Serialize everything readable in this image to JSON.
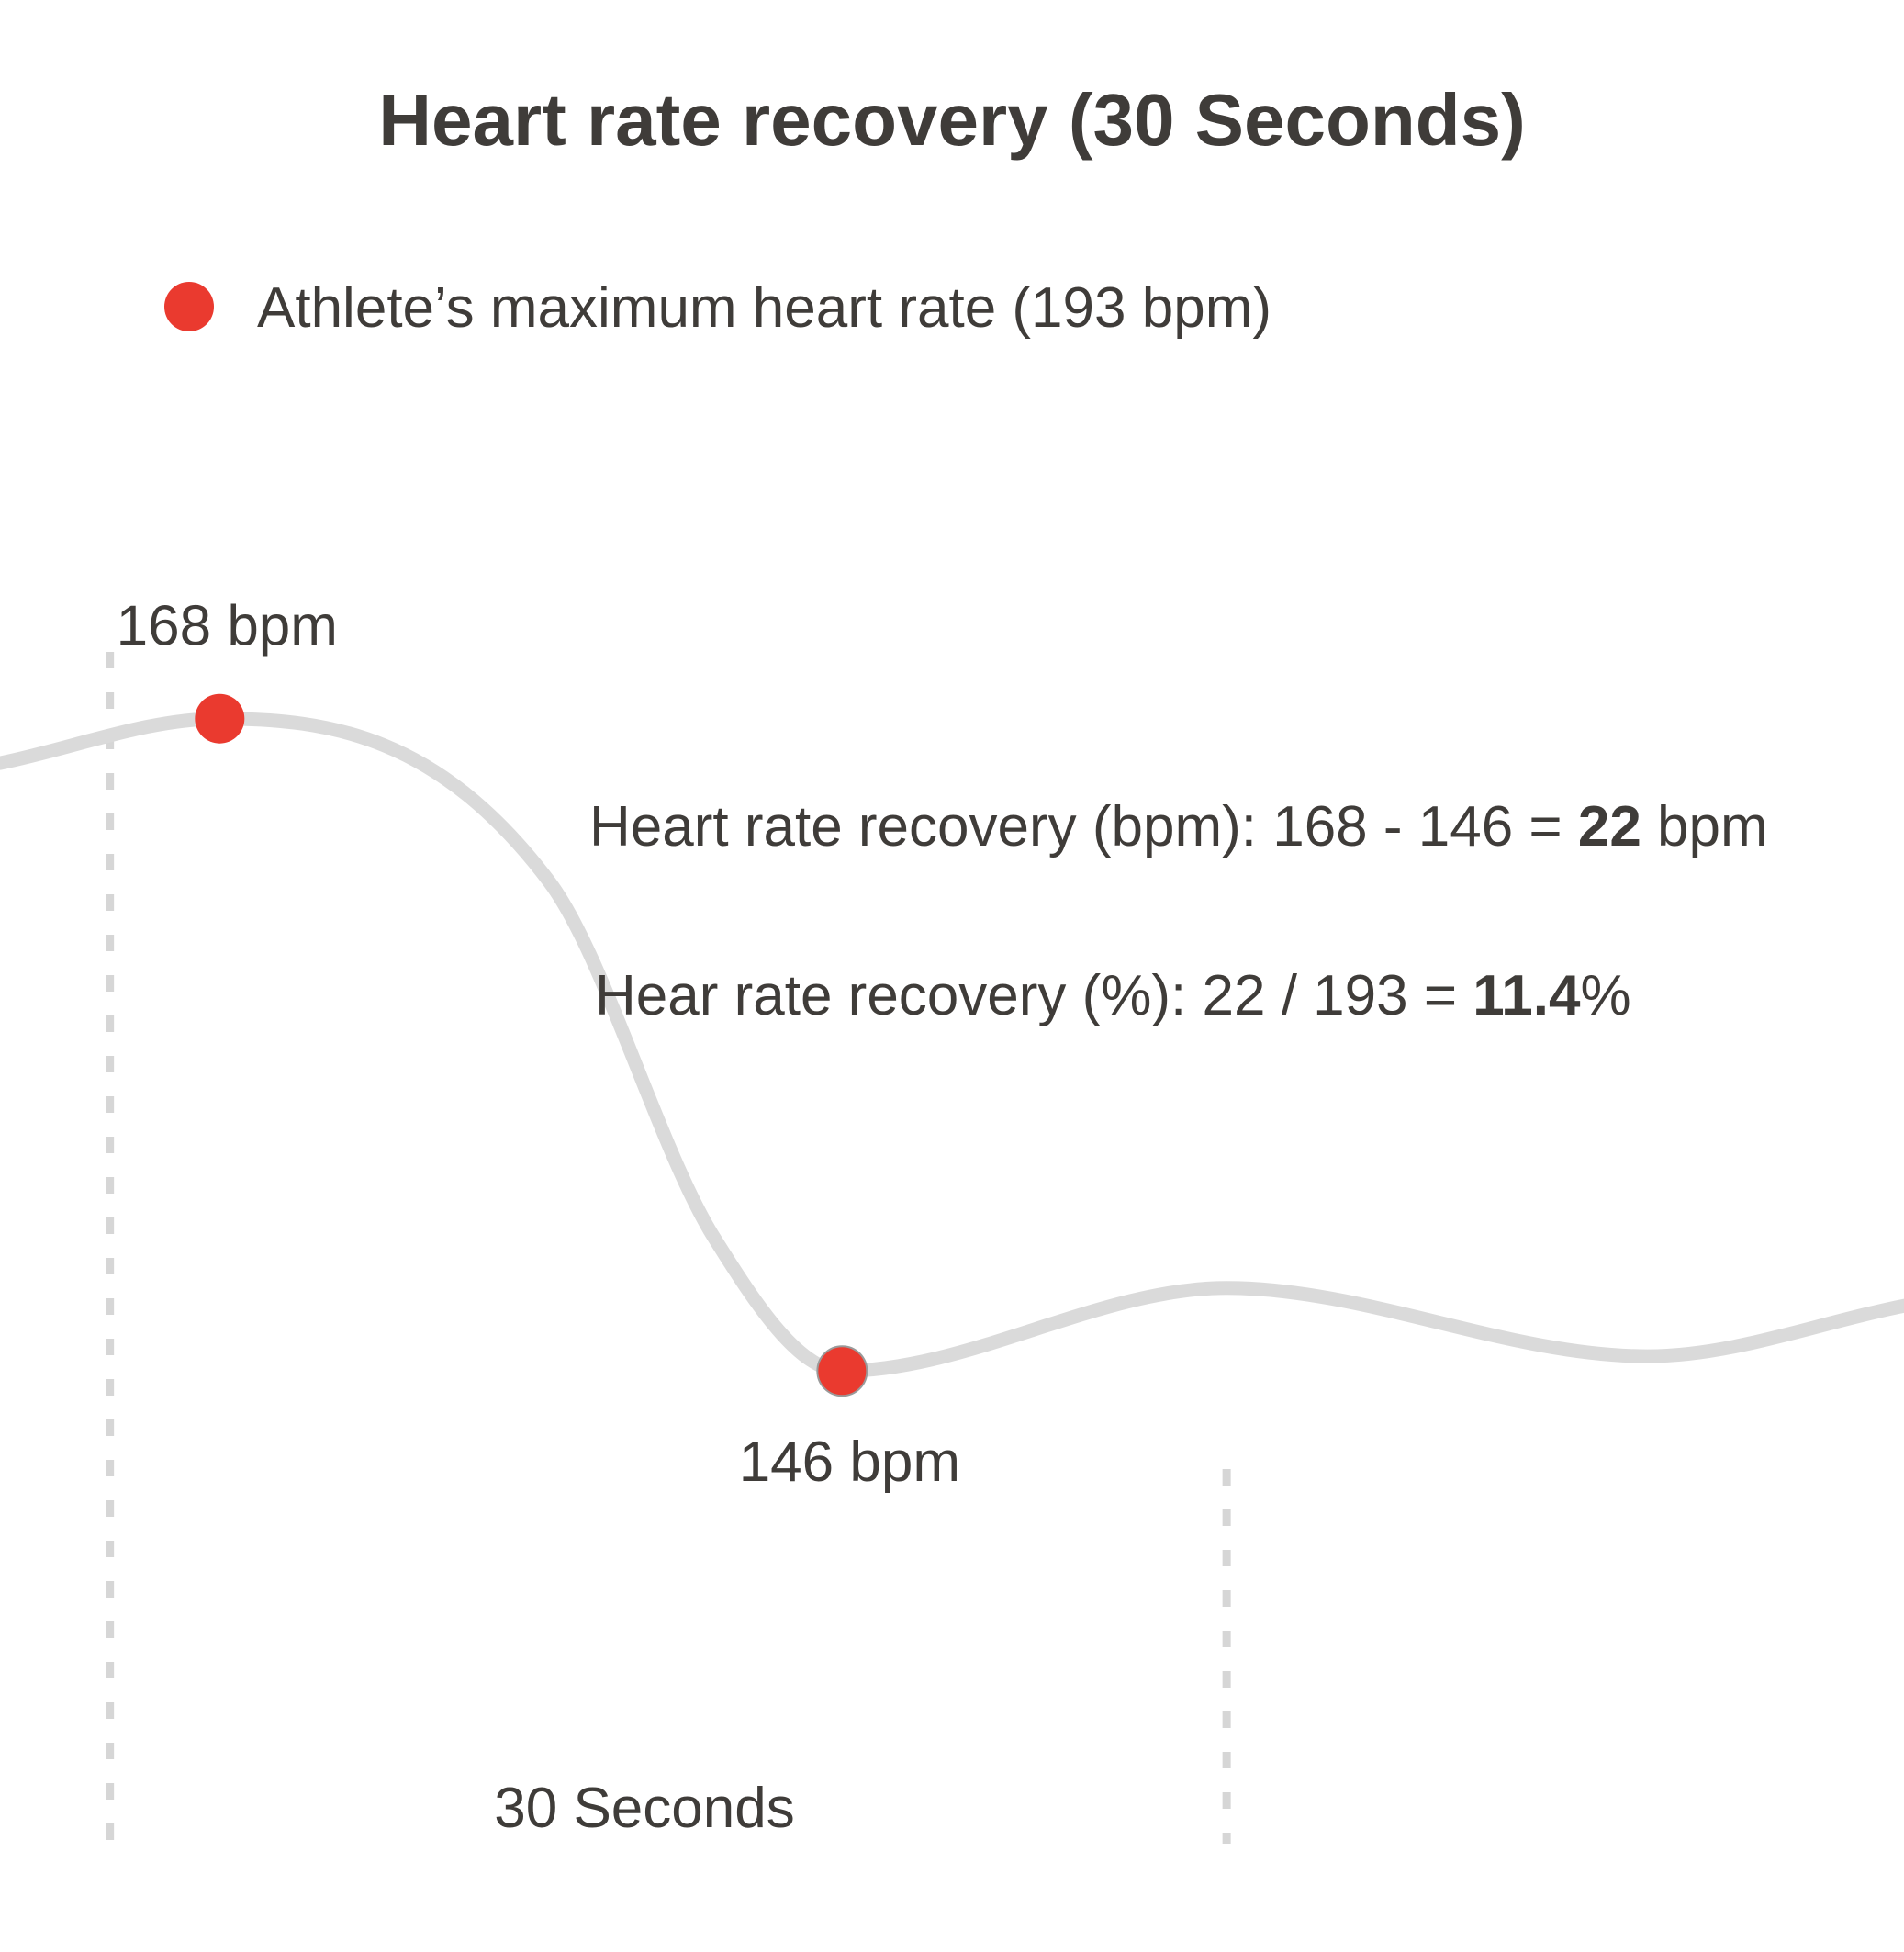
{
  "chart_data": {
    "type": "line",
    "title": "Heart rate recovery (30 Seconds)",
    "legend": [
      {
        "label": "Athlete’s maximum heart rate (193 bpm)",
        "color": "#ea3a2f",
        "marker": "circle"
      }
    ],
    "series": [
      {
        "color": "#dadada",
        "points": [
          {
            "t": -6,
            "bpm": 166.5
          },
          {
            "t": 0,
            "bpm": 168
          },
          {
            "t": 9,
            "bpm": 162.5
          },
          {
            "t": 13.5,
            "bpm": 150.5
          },
          {
            "t": 17,
            "bpm": 146
          },
          {
            "t": 27.5,
            "bpm": 148.8
          },
          {
            "t": 39,
            "bpm": 146.5
          },
          {
            "t": 46,
            "bpm": 148.2
          }
        ]
      }
    ],
    "highlighted_points": [
      {
        "t": 0,
        "bpm": 168,
        "label": "168 bpm",
        "color": "#ea3a2f"
      },
      {
        "t": 17,
        "bpm": 146,
        "label": "146 bpm",
        "color": "#ea3a2f"
      }
    ],
    "interval": {
      "start_t": -3,
      "end_t": 27.5,
      "label": "30 Seconds",
      "guide_color": "#d6d6d6",
      "guide_style": "dashed"
    },
    "annotations": [
      {
        "prefix": "Heart rate recovery (bpm): 168 - 146 = ",
        "value": "22",
        "suffix": " bpm"
      },
      {
        "prefix": "Hear rate recovery (%): 22 / 193 = ",
        "value": "11.4",
        "suffix": "%"
      }
    ],
    "xlim": [
      -6,
      46
    ],
    "ylim": [
      140,
      172
    ],
    "grid": false,
    "legend_position": "top-left"
  }
}
